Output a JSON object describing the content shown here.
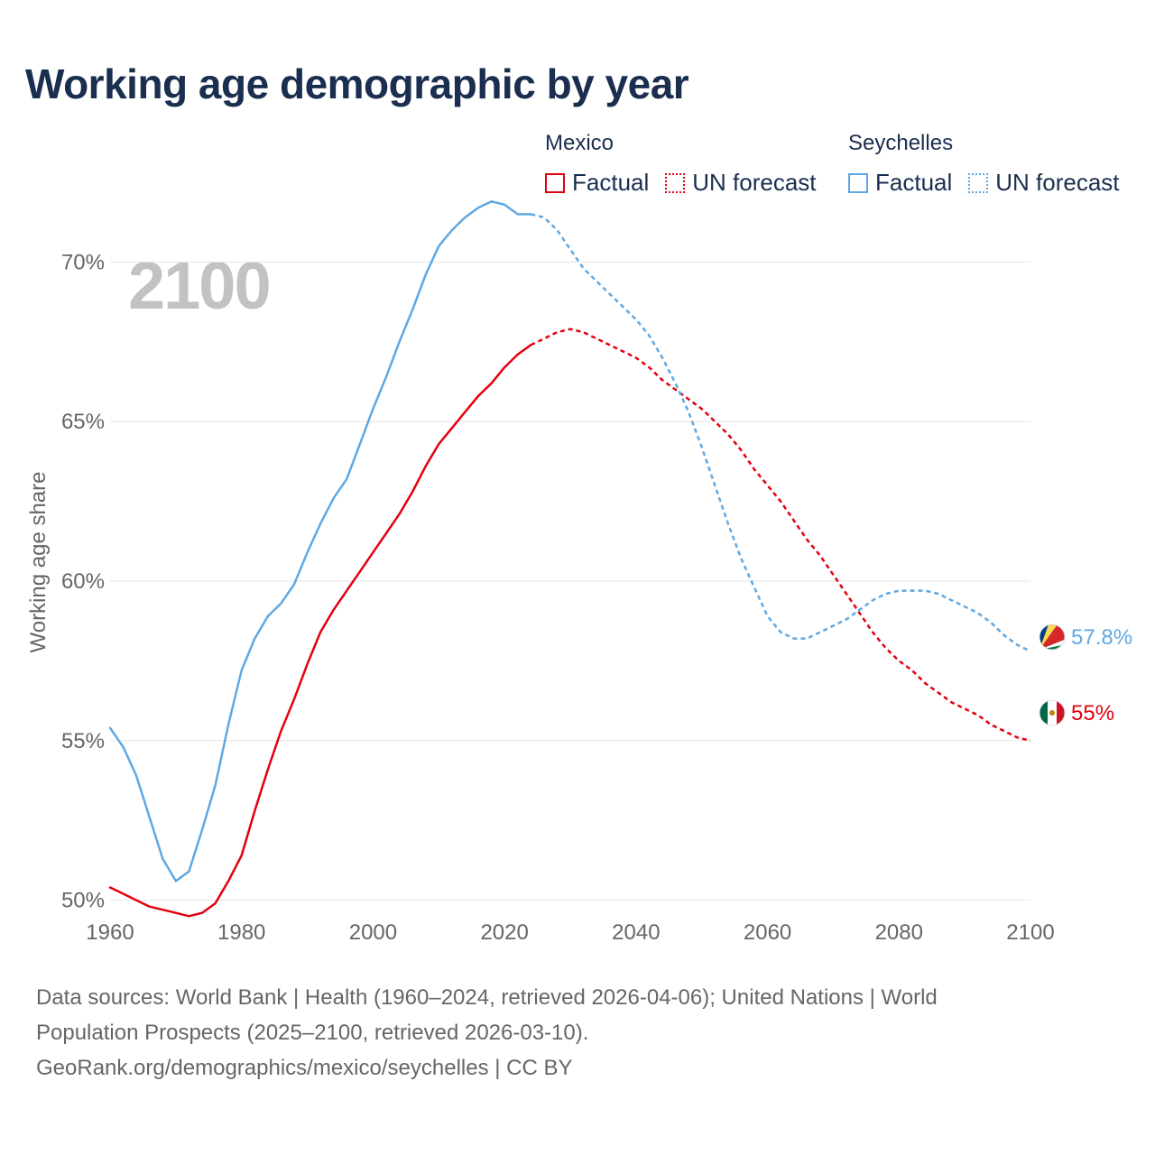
{
  "title": "Working age demographic by year",
  "year_watermark": "2100",
  "legend": [
    {
      "name": "Mexico",
      "factual_label": "Factual",
      "forecast_label": "UN forecast",
      "color": "#e3000f"
    },
    {
      "name": "Seychelles",
      "factual_label": "Factual",
      "forecast_label": "UN forecast",
      "color": "#5fa8e3"
    }
  ],
  "source": {
    "line1": "Data sources: World Bank | Health (1960–2024, retrieved 2026-04-06); United Nations | World",
    "line2": "Population Prospects (2025–2100, retrieved 2026-03-10).",
    "line3": "GeoRank.org/demographics/mexico/seychelles | CC BY"
  },
  "chart_data": {
    "type": "line",
    "title": "Working age demographic by year",
    "xlabel": "",
    "ylabel": "Working age share",
    "xlim": [
      1960,
      2100
    ],
    "ylim": [
      47.5,
      72.5
    ],
    "x_ticks": [
      "1960",
      "1980",
      "2000",
      "2020",
      "2040",
      "2060",
      "2080",
      "2100"
    ],
    "y_ticks": [
      {
        "value": 50,
        "label": "50%"
      },
      {
        "value": 55,
        "label": "55%"
      },
      {
        "value": 60,
        "label": "60%"
      },
      {
        "value": 65,
        "label": "65%"
      },
      {
        "value": 70,
        "label": "70%"
      }
    ],
    "forecast_start": 2025,
    "grid": true,
    "series": [
      {
        "name": "Mexico",
        "color": "#e3000f",
        "end_label": "55%",
        "x": [
          1960,
          1962,
          1964,
          1966,
          1968,
          1970,
          1972,
          1974,
          1976,
          1978,
          1980,
          1982,
          1984,
          1986,
          1988,
          1990,
          1992,
          1994,
          1996,
          1998,
          2000,
          2002,
          2004,
          2006,
          2008,
          2010,
          2012,
          2014,
          2016,
          2018,
          2020,
          2022,
          2024,
          2026,
          2028,
          2030,
          2032,
          2034,
          2036,
          2038,
          2040,
          2042,
          2044,
          2046,
          2048,
          2050,
          2052,
          2054,
          2056,
          2058,
          2060,
          2062,
          2064,
          2066,
          2068,
          2070,
          2072,
          2074,
          2076,
          2078,
          2080,
          2082,
          2084,
          2086,
          2088,
          2090,
          2092,
          2094,
          2096,
          2098,
          2100
        ],
        "values": [
          50.4,
          50.2,
          50.0,
          49.8,
          49.7,
          49.6,
          49.5,
          49.6,
          49.9,
          50.6,
          51.4,
          52.8,
          54.1,
          55.3,
          56.3,
          57.4,
          58.4,
          59.1,
          59.7,
          60.3,
          60.9,
          61.5,
          62.1,
          62.8,
          63.6,
          64.3,
          64.8,
          65.3,
          65.8,
          66.2,
          66.7,
          67.1,
          67.4,
          67.6,
          67.8,
          67.9,
          67.8,
          67.6,
          67.4,
          67.2,
          67.0,
          66.7,
          66.3,
          66.0,
          65.7,
          65.4,
          65.0,
          64.6,
          64.1,
          63.5,
          63.0,
          62.5,
          61.9,
          61.3,
          60.8,
          60.2,
          59.6,
          59.0,
          58.4,
          57.9,
          57.5,
          57.2,
          56.8,
          56.5,
          56.2,
          56.0,
          55.8,
          55.5,
          55.3,
          55.1,
          55.0
        ]
      },
      {
        "name": "Seychelles",
        "color": "#5fa8e3",
        "end_label": "57.8%",
        "x": [
          1960,
          1962,
          1964,
          1966,
          1968,
          1970,
          1972,
          1974,
          1976,
          1978,
          1980,
          1982,
          1984,
          1986,
          1988,
          1990,
          1992,
          1994,
          1996,
          1998,
          2000,
          2002,
          2004,
          2006,
          2008,
          2010,
          2012,
          2014,
          2016,
          2018,
          2020,
          2022,
          2024,
          2026,
          2028,
          2030,
          2032,
          2034,
          2036,
          2038,
          2040,
          2042,
          2044,
          2046,
          2048,
          2050,
          2052,
          2054,
          2056,
          2058,
          2060,
          2062,
          2064,
          2066,
          2068,
          2070,
          2072,
          2074,
          2076,
          2078,
          2080,
          2082,
          2084,
          2086,
          2088,
          2090,
          2092,
          2094,
          2096,
          2098,
          2100
        ],
        "values": [
          55.4,
          54.8,
          53.9,
          52.6,
          51.3,
          50.6,
          50.9,
          52.2,
          53.6,
          55.5,
          57.2,
          58.2,
          58.9,
          59.3,
          59.9,
          60.9,
          61.8,
          62.6,
          63.2,
          64.3,
          65.4,
          66.4,
          67.5,
          68.5,
          69.6,
          70.5,
          71.0,
          71.4,
          71.7,
          71.9,
          71.8,
          71.5,
          71.5,
          71.4,
          71.0,
          70.4,
          69.8,
          69.4,
          69.0,
          68.6,
          68.2,
          67.7,
          67.0,
          66.2,
          65.3,
          64.2,
          63.0,
          61.8,
          60.7,
          59.8,
          58.9,
          58.4,
          58.2,
          58.2,
          58.4,
          58.6,
          58.8,
          59.1,
          59.4,
          59.6,
          59.7,
          59.7,
          59.7,
          59.6,
          59.4,
          59.2,
          59.0,
          58.7,
          58.3,
          58.0,
          57.8
        ]
      }
    ]
  }
}
